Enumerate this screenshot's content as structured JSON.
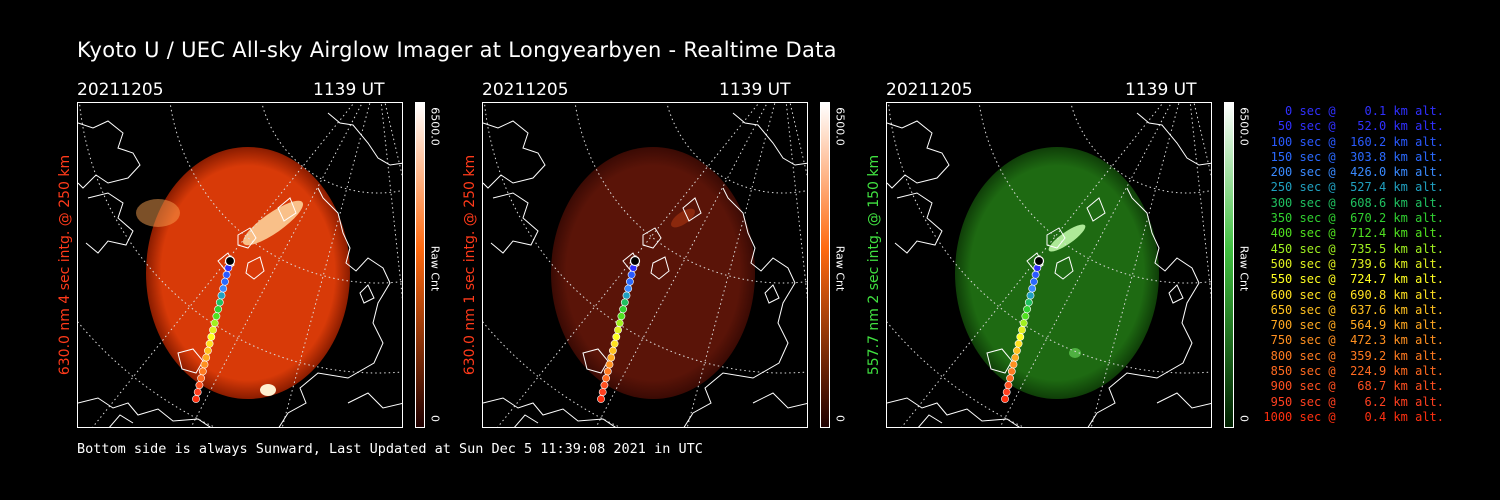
{
  "title": "Kyoto U / UEC All-sky Airglow Imager at Longyearbyen - Realtime Data",
  "panels": [
    {
      "date": "20211205",
      "time": "1139 UT",
      "ylabel": "630.0 nm 4 sec intg. @ 250 km",
      "label_color": "#ff3a1a",
      "glow": "#d83a08",
      "glow_edge": "#8a1c00",
      "cbar_top": "#ffffff",
      "cbar_mid": "#ff6a10",
      "cbar_bottom": "#200000",
      "cbar_max": "6500.0",
      "cbar_min": "0",
      "cbar_unit": "Raw Cnt"
    },
    {
      "date": "20211205",
      "time": "1139 UT",
      "ylabel": "630.0 nm 1 sec intg. @ 250 km",
      "label_color": "#ff3a1a",
      "glow": "#5a1408",
      "glow_edge": "#3a0a04",
      "cbar_top": "#ffffff",
      "cbar_mid": "#ff6a10",
      "cbar_bottom": "#200000",
      "cbar_max": "6500.0",
      "cbar_min": "0",
      "cbar_unit": "Raw Cnt"
    },
    {
      "date": "20211205",
      "time": "1139 UT",
      "ylabel": "557.7 nm 2 sec intg. @ 150 km",
      "label_color": "#40e040",
      "glow": "#1e6a12",
      "glow_edge": "#0f3e08",
      "cbar_top": "#ffffff",
      "cbar_mid": "#40c040",
      "cbar_bottom": "#002000",
      "cbar_max": "6500.0",
      "cbar_min": "0",
      "cbar_unit": "Raw Cnt"
    }
  ],
  "footer": "Bottom side is always Sunward, Last Updated at Sun Dec  5 11:39:08 2021 in UTC",
  "legend": [
    {
      "text": "   0 sec @    0.1 km alt.",
      "color": "#3030ff"
    },
    {
      "text": "  50 sec @   52.0 km alt.",
      "color": "#3030ff"
    },
    {
      "text": " 100 sec @  160.2 km alt.",
      "color": "#2a5aff"
    },
    {
      "text": " 150 sec @  303.8 km alt.",
      "color": "#2a6aff"
    },
    {
      "text": " 200 sec @  426.0 km alt.",
      "color": "#3a8aff"
    },
    {
      "text": " 250 sec @  527.4 km alt.",
      "color": "#20a0c0"
    },
    {
      "text": " 300 sec @  608.6 km alt.",
      "color": "#20c060"
    },
    {
      "text": " 350 sec @  670.2 km alt.",
      "color": "#30d030"
    },
    {
      "text": " 400 sec @  712.4 km alt.",
      "color": "#50e020"
    },
    {
      "text": " 450 sec @  735.5 km alt.",
      "color": "#a0f020"
    },
    {
      "text": " 500 sec @  739.6 km alt.",
      "color": "#e0f020"
    },
    {
      "text": " 550 sec @  724.7 km alt.",
      "color": "#ffff20"
    },
    {
      "text": " 600 sec @  690.8 km alt.",
      "color": "#ffe020"
    },
    {
      "text": " 650 sec @  637.6 km alt.",
      "color": "#ffc020"
    },
    {
      "text": " 700 sec @  564.9 km alt.",
      "color": "#ffa820"
    },
    {
      "text": " 750 sec @  472.3 km alt.",
      "color": "#ff9020"
    },
    {
      "text": " 800 sec @  359.2 km alt.",
      "color": "#ff7a20"
    },
    {
      "text": " 850 sec @  224.9 km alt.",
      "color": "#ff6a20"
    },
    {
      "text": " 900 sec @   68.7 km alt.",
      "color": "#ff5020"
    },
    {
      "text": " 950 sec @    6.2 km alt.",
      "color": "#ff4020"
    },
    {
      "text": "1000 sec @    0.4 km alt.",
      "color": "#ff3010"
    }
  ],
  "trajectory_colors": [
    "#3030ff",
    "#3030ff",
    "#2a5aff",
    "#2a6aff",
    "#3a8aff",
    "#20a0c0",
    "#20c060",
    "#30d030",
    "#50e020",
    "#a0f020",
    "#e0f020",
    "#ffff20",
    "#ffe020",
    "#ffc020",
    "#ffa820",
    "#ff9020",
    "#ff7a20",
    "#ff6a20",
    "#ff5020",
    "#ff4020",
    "#ff3010"
  ]
}
